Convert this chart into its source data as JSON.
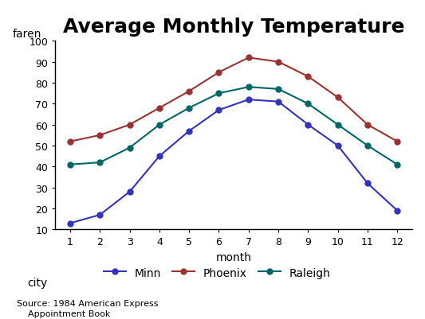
{
  "title": "Average Monthly Temperature",
  "xlabel": "month",
  "ylabel": "faren",
  "months": [
    1,
    2,
    3,
    4,
    5,
    6,
    7,
    8,
    9,
    10,
    11,
    12
  ],
  "minn": [
    13,
    17,
    28,
    45,
    57,
    67,
    72,
    71,
    60,
    50,
    32,
    19
  ],
  "phoenix": [
    52,
    55,
    60,
    68,
    76,
    85,
    92,
    90,
    83,
    73,
    60,
    52
  ],
  "raleigh": [
    41,
    42,
    49,
    60,
    68,
    75,
    78,
    77,
    70,
    60,
    50,
    41
  ],
  "minn_color": "#3333bb",
  "phoenix_color": "#993333",
  "raleigh_color": "#006666",
  "ylim_min": 10,
  "ylim_max": 100,
  "yticks": [
    10,
    20,
    30,
    40,
    50,
    60,
    70,
    80,
    90,
    100
  ],
  "xticks": [
    1,
    2,
    3,
    4,
    5,
    6,
    7,
    8,
    9,
    10,
    11,
    12
  ],
  "bg_color": "#ffffff",
  "plot_bg": "#ffffff",
  "source_text": "Source: 1984 American Express\n    Appointment Book",
  "title_fontsize": 18,
  "axis_label_fontsize": 10,
  "tick_fontsize": 9,
  "legend_fontsize": 10
}
